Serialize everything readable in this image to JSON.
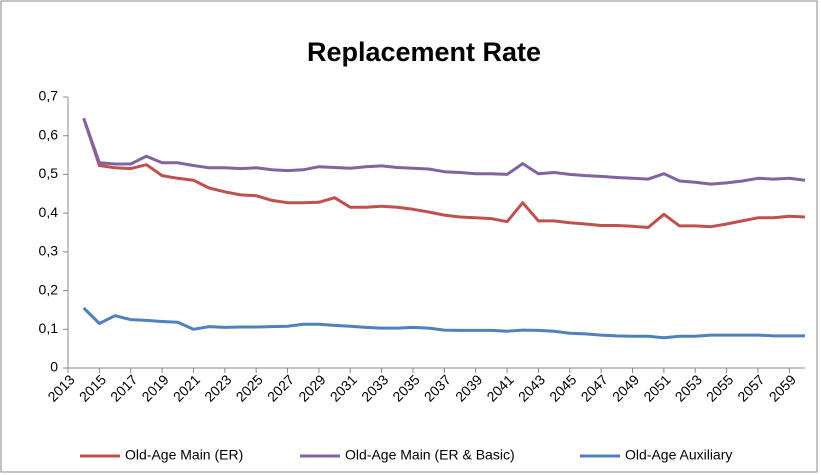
{
  "chart_data": {
    "type": "line",
    "title": "Replacement Rate",
    "x": [
      2014,
      2015,
      2016,
      2017,
      2018,
      2019,
      2020,
      2021,
      2022,
      2023,
      2024,
      2025,
      2026,
      2027,
      2028,
      2029,
      2030,
      2031,
      2032,
      2033,
      2034,
      2035,
      2036,
      2037,
      2038,
      2039,
      2040,
      2041,
      2042,
      2043,
      2044,
      2045,
      2046,
      2047,
      2048,
      2049,
      2050,
      2051,
      2052,
      2053,
      2054,
      2055,
      2056,
      2057,
      2058,
      2059,
      2060
    ],
    "series": [
      {
        "name": "Old-Age Main (ER)",
        "color": "#c0504d",
        "values": [
          0.645,
          0.523,
          0.517,
          0.515,
          0.525,
          0.497,
          0.49,
          0.485,
          0.465,
          0.455,
          0.447,
          0.445,
          0.433,
          0.427,
          0.427,
          0.428,
          0.44,
          0.415,
          0.415,
          0.418,
          0.415,
          0.41,
          0.403,
          0.395,
          0.39,
          0.388,
          0.386,
          0.378,
          0.427,
          0.38,
          0.38,
          0.375,
          0.372,
          0.368,
          0.368,
          0.366,
          0.363,
          0.397,
          0.367,
          0.367,
          0.365,
          0.372,
          0.38,
          0.388,
          0.388,
          0.392,
          0.39
        ]
      },
      {
        "name": "Old-Age Main (ER & Basic)",
        "color": "#8064a2",
        "values": [
          0.645,
          0.53,
          0.527,
          0.527,
          0.547,
          0.53,
          0.53,
          0.523,
          0.517,
          0.517,
          0.515,
          0.517,
          0.512,
          0.51,
          0.512,
          0.52,
          0.518,
          0.516,
          0.52,
          0.522,
          0.518,
          0.516,
          0.514,
          0.507,
          0.505,
          0.502,
          0.502,
          0.5,
          0.528,
          0.502,
          0.505,
          0.5,
          0.497,
          0.495,
          0.492,
          0.49,
          0.488,
          0.502,
          0.483,
          0.48,
          0.475,
          0.478,
          0.483,
          0.49,
          0.488,
          0.49,
          0.485
        ]
      },
      {
        "name": "Old-Age Auxiliary",
        "color": "#4f81bd",
        "values": [
          0.155,
          0.115,
          0.135,
          0.125,
          0.123,
          0.12,
          0.118,
          0.1,
          0.107,
          0.105,
          0.106,
          0.106,
          0.107,
          0.108,
          0.113,
          0.113,
          0.11,
          0.108,
          0.105,
          0.103,
          0.103,
          0.105,
          0.103,
          0.098,
          0.097,
          0.097,
          0.097,
          0.095,
          0.098,
          0.097,
          0.095,
          0.09,
          0.088,
          0.085,
          0.083,
          0.082,
          0.082,
          0.078,
          0.082,
          0.082,
          0.085,
          0.085,
          0.085,
          0.085,
          0.083,
          0.083,
          0.083
        ]
      }
    ],
    "xlim": [
      2013,
      2060
    ],
    "xticks": [
      2013,
      2015,
      2017,
      2019,
      2021,
      2023,
      2025,
      2027,
      2029,
      2031,
      2033,
      2035,
      2037,
      2039,
      2041,
      2043,
      2045,
      2047,
      2049,
      2051,
      2053,
      2055,
      2057,
      2059
    ],
    "ylim": [
      0,
      0.7
    ],
    "yticks": [
      0,
      {
        "value": 0.1,
        "label": "0,1"
      },
      {
        "value": 0.2,
        "label": "0,2"
      },
      {
        "value": 0.3,
        "label": "0,3"
      },
      {
        "value": 0.4,
        "label": "0,4"
      },
      {
        "value": 0.5,
        "label": "0,5"
      },
      {
        "value": 0.6,
        "label": "0,6"
      },
      {
        "value": 0.7,
        "label": "0,7"
      }
    ],
    "grid": false,
    "legend": "bottom"
  }
}
